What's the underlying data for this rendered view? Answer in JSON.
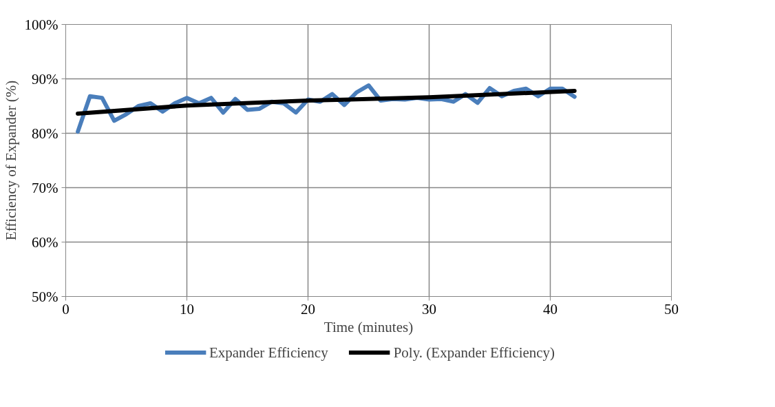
{
  "chart_data": {
    "type": "line",
    "xlabel": "Time (minutes)",
    "ylabel": "Efficiency of Expander (%)",
    "x": [
      1,
      2,
      3,
      4,
      5,
      6,
      7,
      8,
      9,
      10,
      11,
      12,
      13,
      14,
      15,
      16,
      17,
      18,
      19,
      20,
      21,
      22,
      23,
      24,
      25,
      26,
      27,
      28,
      29,
      30,
      31,
      32,
      33,
      34,
      35,
      36,
      37,
      38,
      39,
      40,
      41,
      42
    ],
    "series": [
      {
        "name": "Expander Efficiency",
        "color": "#4a7ebb",
        "values": [
          80.3,
          86.8,
          86.5,
          82.3,
          83.5,
          85.0,
          85.5,
          84.0,
          85.5,
          86.5,
          85.5,
          86.5,
          83.8,
          86.3,
          84.3,
          84.5,
          85.8,
          85.5,
          83.8,
          86.2,
          85.8,
          87.2,
          85.2,
          87.5,
          88.8,
          86.0,
          86.3,
          86.2,
          86.5,
          86.2,
          86.3,
          85.8,
          87.2,
          85.6,
          88.3,
          86.8,
          87.8,
          88.2,
          86.8,
          88.2,
          88.2,
          86.7
        ]
      },
      {
        "name": "Poly. (Expander Efficiency)",
        "color": "#000000",
        "x": [
          1,
          10,
          20,
          30,
          42
        ],
        "values": [
          83.6,
          85.1,
          86.0,
          86.6,
          87.8
        ]
      }
    ],
    "xlim": [
      0,
      50
    ],
    "xticks": [
      0,
      10,
      20,
      30,
      40,
      50
    ],
    "ylim": [
      50,
      100
    ],
    "yticks": [
      {
        "value": 50,
        "label": "50%"
      },
      {
        "value": 60,
        "label": "60%"
      },
      {
        "value": 70,
        "label": "70%"
      },
      {
        "value": 80,
        "label": "80%"
      },
      {
        "value": 90,
        "label": "90%"
      },
      {
        "value": 100,
        "label": "100%"
      }
    ],
    "grid": true,
    "legend": "bottom",
    "marker": "none",
    "line_style": "solid"
  }
}
